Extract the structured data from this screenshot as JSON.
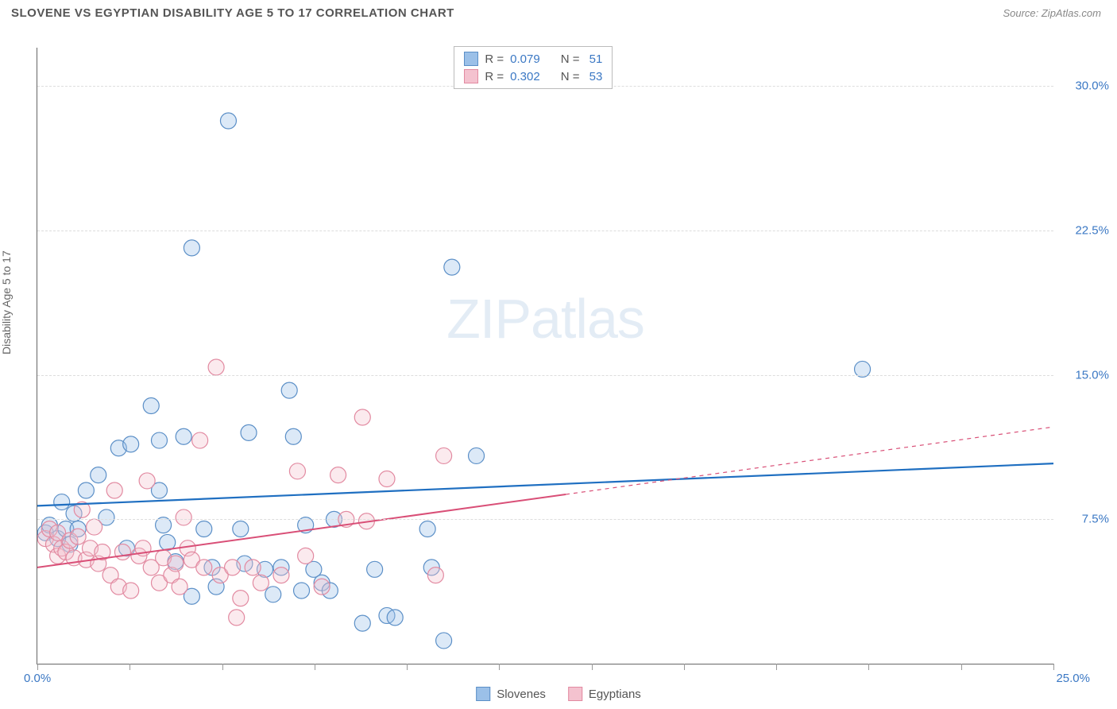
{
  "header": {
    "title": "SLOVENE VS EGYPTIAN DISABILITY AGE 5 TO 17 CORRELATION CHART",
    "source_label": "Source: ",
    "source_value": "ZipAtlas.com"
  },
  "watermark": {
    "zip": "ZIP",
    "atlas": "atlas"
  },
  "chart": {
    "type": "scatter",
    "ylabel": "Disability Age 5 to 17",
    "xlim": [
      0,
      25
    ],
    "ylim": [
      0,
      32
    ],
    "xtick_positions": [
      0,
      2.27,
      4.55,
      6.82,
      9.09,
      11.36,
      13.64,
      15.91,
      18.18,
      20.45,
      22.73,
      25
    ],
    "xtick_labels": {
      "min": "0.0%",
      "max": "25.0%"
    },
    "ytick_labels": [
      {
        "value": 7.5,
        "label": "7.5%"
      },
      {
        "value": 15.0,
        "label": "15.0%"
      },
      {
        "value": 22.5,
        "label": "22.5%"
      },
      {
        "value": 30.0,
        "label": "30.0%"
      }
    ],
    "grid_color": "#dddddd",
    "background_color": "#ffffff",
    "marker_radius": 10,
    "marker_opacity": 0.35,
    "marker_stroke_width": 1.2
  },
  "series": [
    {
      "name": "Slovenes",
      "color_fill": "#9bc0e8",
      "color_stroke": "#5b8fc7",
      "line_color": "#1f6fc1",
      "line_width": 2.2,
      "regression": {
        "y_at_xmin": 8.2,
        "y_at_xmax": 10.4,
        "extrapolate_from_x": 0
      },
      "stats": {
        "R": "0.079",
        "N": "51"
      },
      "points": [
        [
          0.2,
          6.8
        ],
        [
          0.3,
          7.2
        ],
        [
          0.5,
          6.5
        ],
        [
          0.6,
          8.4
        ],
        [
          0.7,
          7.0
        ],
        [
          0.8,
          6.2
        ],
        [
          0.9,
          7.8
        ],
        [
          1.0,
          7.0
        ],
        [
          1.2,
          9.0
        ],
        [
          1.5,
          9.8
        ],
        [
          1.7,
          7.6
        ],
        [
          2.0,
          11.2
        ],
        [
          2.2,
          6.0
        ],
        [
          2.3,
          11.4
        ],
        [
          2.8,
          13.4
        ],
        [
          3.0,
          11.6
        ],
        [
          3.0,
          9.0
        ],
        [
          3.1,
          7.2
        ],
        [
          3.2,
          6.3
        ],
        [
          3.4,
          5.3
        ],
        [
          3.6,
          11.8
        ],
        [
          3.8,
          21.6
        ],
        [
          3.8,
          3.5
        ],
        [
          4.1,
          7.0
        ],
        [
          4.3,
          5.0
        ],
        [
          4.4,
          4.0
        ],
        [
          4.7,
          28.2
        ],
        [
          5.0,
          7.0
        ],
        [
          5.1,
          5.2
        ],
        [
          5.2,
          12.0
        ],
        [
          5.6,
          4.9
        ],
        [
          5.8,
          3.6
        ],
        [
          6.0,
          5.0
        ],
        [
          6.2,
          14.2
        ],
        [
          6.3,
          11.8
        ],
        [
          6.5,
          3.8
        ],
        [
          6.6,
          7.2
        ],
        [
          6.8,
          4.9
        ],
        [
          7.0,
          4.2
        ],
        [
          7.2,
          3.8
        ],
        [
          7.3,
          7.5
        ],
        [
          8.0,
          2.1
        ],
        [
          8.3,
          4.9
        ],
        [
          8.6,
          2.5
        ],
        [
          8.8,
          2.4
        ],
        [
          9.6,
          7.0
        ],
        [
          9.7,
          5.0
        ],
        [
          10.0,
          1.2
        ],
        [
          10.2,
          20.6
        ],
        [
          10.8,
          10.8
        ],
        [
          20.3,
          15.3
        ]
      ]
    },
    {
      "name": "Egyptians",
      "color_fill": "#f4c2cf",
      "color_stroke": "#e28aa1",
      "line_color": "#d94f77",
      "line_width": 2.0,
      "regression": {
        "y_at_xmin": 5.0,
        "y_at_xmax": 12.3,
        "extrapolate_from_x": 13.0
      },
      "stats": {
        "R": "0.302",
        "N": "53"
      },
      "points": [
        [
          0.2,
          6.5
        ],
        [
          0.3,
          7.0
        ],
        [
          0.4,
          6.2
        ],
        [
          0.5,
          6.8
        ],
        [
          0.5,
          5.6
        ],
        [
          0.6,
          6.0
        ],
        [
          0.7,
          5.8
        ],
        [
          0.8,
          6.4
        ],
        [
          0.9,
          5.5
        ],
        [
          1.0,
          6.6
        ],
        [
          1.1,
          8.0
        ],
        [
          1.2,
          5.4
        ],
        [
          1.3,
          6.0
        ],
        [
          1.4,
          7.1
        ],
        [
          1.5,
          5.2
        ],
        [
          1.6,
          5.8
        ],
        [
          1.8,
          4.6
        ],
        [
          1.9,
          9.0
        ],
        [
          2.0,
          4.0
        ],
        [
          2.1,
          5.8
        ],
        [
          2.3,
          3.8
        ],
        [
          2.5,
          5.6
        ],
        [
          2.6,
          6.0
        ],
        [
          2.7,
          9.5
        ],
        [
          2.8,
          5.0
        ],
        [
          3.0,
          4.2
        ],
        [
          3.1,
          5.5
        ],
        [
          3.3,
          4.6
        ],
        [
          3.4,
          5.2
        ],
        [
          3.5,
          4.0
        ],
        [
          3.6,
          7.6
        ],
        [
          3.7,
          6.0
        ],
        [
          3.8,
          5.4
        ],
        [
          4.0,
          11.6
        ],
        [
          4.1,
          5.0
        ],
        [
          4.4,
          15.4
        ],
        [
          4.5,
          4.6
        ],
        [
          4.8,
          5.0
        ],
        [
          4.9,
          2.4
        ],
        [
          5.0,
          3.4
        ],
        [
          5.3,
          5.0
        ],
        [
          5.5,
          4.2
        ],
        [
          6.0,
          4.6
        ],
        [
          6.4,
          10.0
        ],
        [
          6.6,
          5.6
        ],
        [
          7.0,
          4.0
        ],
        [
          7.4,
          9.8
        ],
        [
          7.6,
          7.5
        ],
        [
          8.0,
          12.8
        ],
        [
          8.1,
          7.4
        ],
        [
          8.6,
          9.6
        ],
        [
          9.8,
          4.6
        ],
        [
          10.0,
          10.8
        ]
      ]
    }
  ],
  "stats_box": {
    "r_label": "R =",
    "n_label": "N ="
  },
  "legend": {
    "items": [
      "Slovenes",
      "Egyptians"
    ]
  }
}
